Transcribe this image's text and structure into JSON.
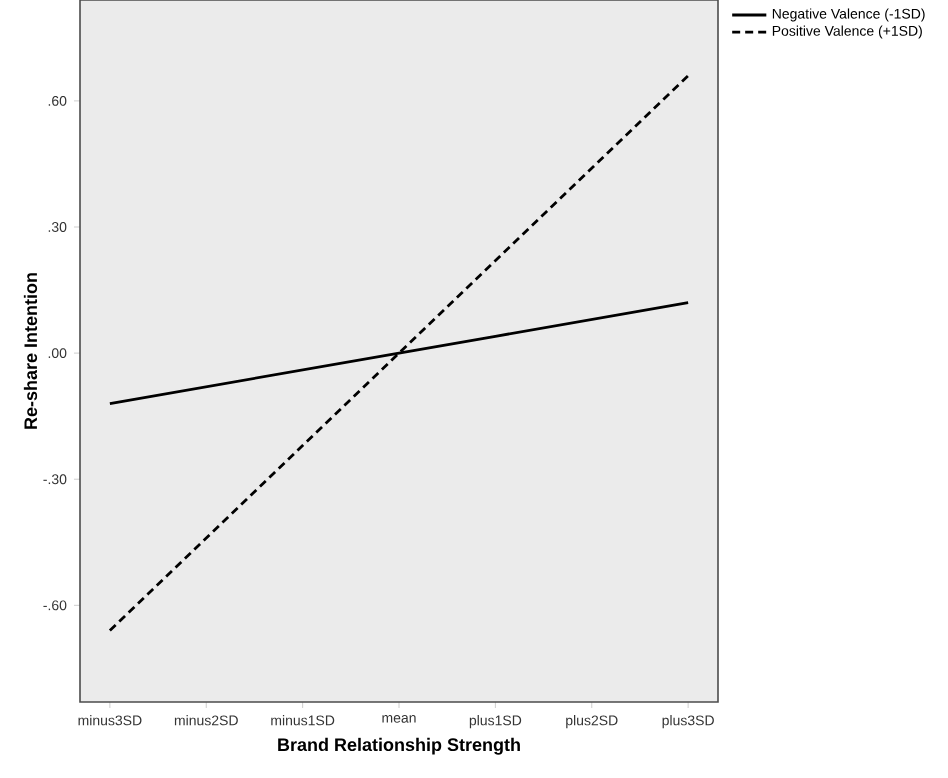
{
  "chart_data": {
    "type": "line",
    "xlabel": "Brand Relationship Strength",
    "ylabel": "Re-share Intention",
    "categories": [
      "minus3SD",
      "minus2SD",
      "minus1SD",
      "mean",
      "plus1SD",
      "plus2SD",
      "plus3SD"
    ],
    "series": [
      {
        "name": "Negative Valence (-1SD)",
        "color": "#000000",
        "line_style": "solid",
        "values": [
          -0.12,
          -0.08,
          -0.04,
          0,
          0.04,
          0.08,
          0.12
        ]
      },
      {
        "name": "Positive Valence (+1SD)",
        "color": "#000000",
        "line_style": "dashed",
        "values": [
          -0.66,
          -0.44,
          -0.22,
          0,
          0.22,
          0.44,
          0.66
        ]
      }
    ],
    "ylim": [
      -0.83,
      0.84
    ],
    "yticks": [
      {
        "value": -0.6,
        "label": "-.60"
      },
      {
        "value": -0.3,
        "label": "-.30"
      },
      {
        "value": 0,
        "label": ".00"
      },
      {
        "value": 0.3,
        "label": ".30"
      },
      {
        "value": 0.6,
        "label": ".60"
      }
    ],
    "grid": false,
    "legend": "top right",
    "marker": "none"
  }
}
